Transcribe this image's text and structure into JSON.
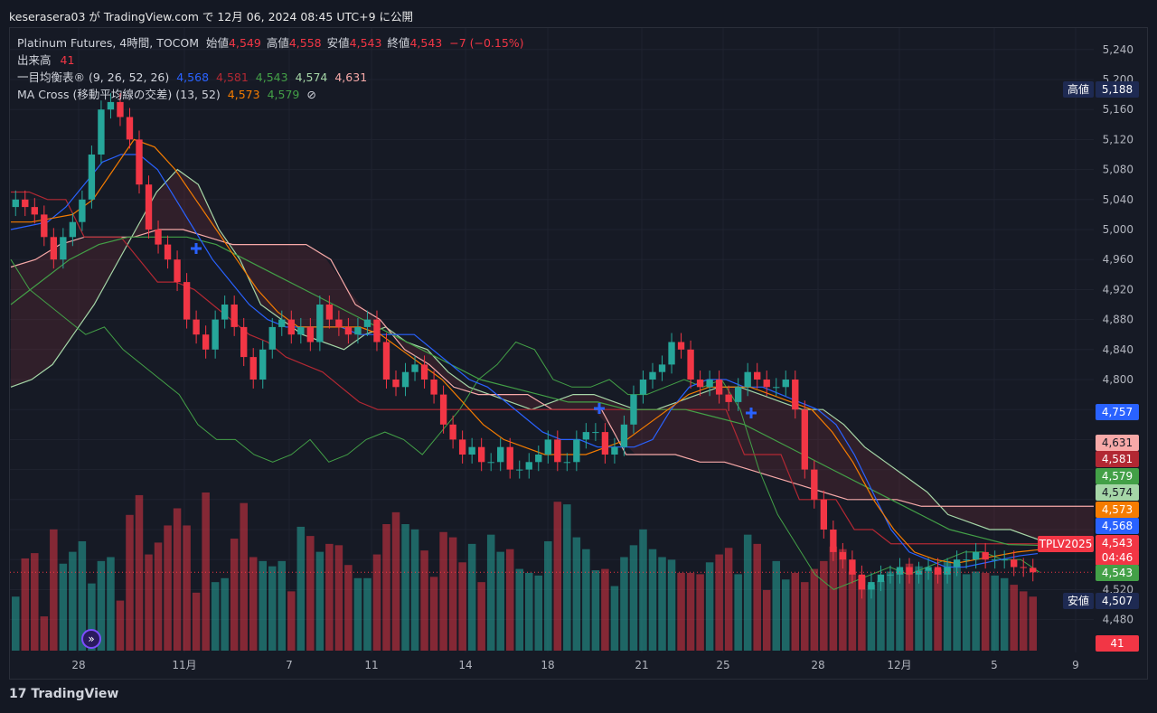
{
  "header": {
    "title": "keserasera03 が TradingView.com で 12月 06, 2024 08:45 UTC+9 に公開"
  },
  "legend": {
    "main_name": "Platinum Futures, 4時間, TOCOM",
    "open_label": "始値",
    "open": "4,549",
    "high_label": "高値",
    "high": "4,558",
    "low_label": "安値",
    "low": "4,543",
    "close_label": "終値",
    "close": "4,543",
    "change": "−7 (−0.15%)",
    "volume_label": "出来高",
    "volume": "41",
    "ichimoku_label": "一目均衡表® (9, 26, 52, 26)",
    "ichimoku_values": [
      "4,568",
      "4,581",
      "4,543",
      "4,574",
      "4,631"
    ],
    "ma_label": "MA Cross (移動平均線の交差) (13, 52)",
    "ma_values": [
      "4,573",
      "4,579"
    ],
    "ma_icon": "eye-off-icon"
  },
  "price_axis": {
    "ticks": [
      "5,240",
      "5,200",
      "5,160",
      "5,120",
      "5,080",
      "5,040",
      "5,000",
      "4,960",
      "4,920",
      "4,880",
      "4,840",
      "4,800",
      "4,520",
      "4,480"
    ],
    "high_label": "高値",
    "high_value": "5,188",
    "low_label": "安値",
    "low_value": "4,507",
    "labels": [
      {
        "text": "4,757",
        "color": "#2962ff"
      },
      {
        "text": "4,631",
        "color": "#f7a9a8"
      },
      {
        "text": "4,581",
        "color": "#b22833"
      },
      {
        "text": "4,579",
        "color": "#43a047"
      },
      {
        "text": "4,574",
        "color": "#a5d6a7"
      },
      {
        "text": "4,573",
        "color": "#f57c00"
      },
      {
        "text": "4,568",
        "color": "#2962ff"
      },
      {
        "text": "4,543",
        "color": "#f23645"
      },
      {
        "text": "04:46",
        "color": "#f23645"
      },
      {
        "text": "4,543",
        "color": "#43a047"
      },
      {
        "text": "41",
        "color": "#f23645"
      }
    ],
    "symbol_tag": "TPLV2025"
  },
  "time_axis": [
    "28",
    "11月",
    "7",
    "11",
    "14",
    "18",
    "21",
    "25",
    "28",
    "12月",
    "5",
    "9"
  ],
  "footer": {
    "brand": "TradingView",
    "logo": "tradingview-logo-icon",
    "replay_icon": "fast-forward-icon"
  },
  "chart_data": {
    "type": "candlestick",
    "ylim": [
      4470,
      5255
    ],
    "colors": {
      "up": "#26a69a",
      "down": "#f23645",
      "tenkan": "#2962ff",
      "kijun": "#b22833",
      "chikou": "#43a047",
      "spanA": "#a5d6a7",
      "spanB": "#f7a9a8",
      "ma_fast": "#f57c00",
      "ma_slow": "#43a047"
    },
    "close": [
      5040,
      5030,
      5020,
      4990,
      4960,
      4990,
      5010,
      5040,
      5100,
      5160,
      5170,
      5150,
      5120,
      5060,
      5000,
      4980,
      4960,
      4930,
      4880,
      4860,
      4840,
      4880,
      4900,
      4870,
      4830,
      4800,
      4840,
      4870,
      4880,
      4860,
      4870,
      4850,
      4900,
      4880,
      4870,
      4860,
      4870,
      4880,
      4850,
      4800,
      4790,
      4810,
      4820,
      4800,
      4780,
      4740,
      4720,
      4700,
      4710,
      4690,
      4690,
      4710,
      4680,
      4680,
      4690,
      4700,
      4720,
      4690,
      4690,
      4720,
      4730,
      4730,
      4700,
      4710,
      4740,
      4780,
      4800,
      4810,
      4820,
      4850,
      4840,
      4800,
      4790,
      4800,
      4780,
      4770,
      4790,
      4810,
      4800,
      4790,
      4790,
      4800,
      4760,
      4680,
      4640,
      4600,
      4570,
      4560,
      4540,
      4520,
      4530,
      4540,
      4540,
      4550,
      4540,
      4545,
      4550,
      4540,
      4550,
      4560,
      4560,
      4570,
      4560,
      4560,
      4560,
      4550,
      4549,
      4543
    ],
    "volume": [
      41,
      70,
      74,
      26,
      92,
      66,
      75,
      83,
      51,
      68,
      71,
      38,
      103,
      118,
      73,
      82,
      95,
      108,
      95,
      44,
      120,
      52,
      55,
      85,
      112,
      71,
      68,
      64,
      68,
      45,
      94,
      87,
      75,
      81,
      80,
      65,
      55,
      55,
      73,
      96,
      105,
      96,
      92,
      76,
      56,
      90,
      86,
      67,
      81,
      52,
      88,
      75,
      77,
      62,
      59,
      57,
      83,
      113,
      111,
      86,
      77,
      61,
      62,
      49,
      71,
      80,
      92,
      77,
      71,
      69,
      59,
      59,
      58,
      67,
      73,
      78,
      58,
      88,
      81,
      46,
      68,
      54,
      59,
      52,
      62,
      68,
      79,
      77,
      60,
      57,
      50,
      53,
      60,
      61,
      66,
      64,
      61,
      62,
      68,
      66,
      58,
      60,
      59,
      57,
      55,
      50,
      45,
      41
    ],
    "tenkan": [
      5000,
      5005,
      5010,
      5030,
      5060,
      5090,
      5100,
      5100,
      5080,
      5040,
      5000,
      4960,
      4930,
      4900,
      4880,
      4870,
      4870,
      4870,
      4870,
      4860,
      4860,
      4860,
      4860,
      4840,
      4820,
      4800,
      4790,
      4770,
      4750,
      4730,
      4720,
      4720,
      4710,
      4710,
      4710,
      4720,
      4760,
      4790,
      4800,
      4800,
      4790,
      4790,
      4780,
      4770,
      4760,
      4740,
      4700,
      4650,
      4600,
      4570,
      4560,
      4550,
      4550,
      4555,
      4560,
      4565,
      4568
    ],
    "kijun": [
      5050,
      5050,
      5040,
      5040,
      4990,
      4990,
      4990,
      4960,
      4930,
      4930,
      4920,
      4900,
      4880,
      4860,
      4850,
      4830,
      4820,
      4810,
      4790,
      4770,
      4760,
      4760,
      4760,
      4760,
      4760,
      4760,
      4760,
      4760,
      4760,
      4760,
      4760,
      4760,
      4760,
      4760,
      4760,
      4760,
      4760,
      4760,
      4760,
      4760,
      4700,
      4700,
      4700,
      4640,
      4640,
      4640,
      4600,
      4600,
      4581,
      4581,
      4581,
      4581,
      4581,
      4581,
      4581,
      4581,
      4581
    ],
    "span_a": [
      4790,
      4800,
      4820,
      4860,
      4900,
      4950,
      5000,
      5050,
      5080,
      5060,
      5000,
      4960,
      4900,
      4880,
      4860,
      4850,
      4840,
      4860,
      4870,
      4850,
      4840,
      4810,
      4790,
      4780,
      4770,
      4760,
      4770,
      4780,
      4780,
      4770,
      4760,
      4760,
      4770,
      4780,
      4790,
      4790,
      4780,
      4770,
      4760,
      4760,
      4740,
      4710,
      4690,
      4670,
      4650,
      4620,
      4610,
      4600,
      4600,
      4590,
      4580,
      4575,
      4574
    ],
    "span_b": [
      4950,
      4960,
      4980,
      4990,
      4990,
      4990,
      5000,
      5000,
      4990,
      4980,
      4980,
      4980,
      4980,
      4960,
      4900,
      4880,
      4840,
      4820,
      4790,
      4780,
      4780,
      4780,
      4760,
      4760,
      4760,
      4700,
      4700,
      4700,
      4690,
      4690,
      4680,
      4670,
      4660,
      4650,
      4640,
      4640,
      4640,
      4631,
      4631,
      4631,
      4631,
      4631,
      4631,
      4631,
      4631
    ],
    "chikou": [
      4960,
      4920,
      4900,
      4880,
      4860,
      4870,
      4840,
      4820,
      4800,
      4780,
      4740,
      4720,
      4720,
      4700,
      4690,
      4700,
      4720,
      4690,
      4700,
      4720,
      4730,
      4720,
      4700,
      4730,
      4760,
      4800,
      4820,
      4850,
      4840,
      4800,
      4790,
      4790,
      4800,
      4780,
      4780,
      4790,
      4800,
      4790,
      4800,
      4760,
      4680,
      4620,
      4580,
      4540,
      4520,
      4530,
      4540,
      4550,
      4540,
      4550,
      4560,
      4570,
      4570,
      4560,
      4560,
      4543
    ],
    "ma_fast": [
      5010,
      5010,
      5015,
      5020,
      5040,
      5080,
      5120,
      5110,
      5080,
      5040,
      5000,
      4960,
      4920,
      4890,
      4870,
      4870,
      4870,
      4870,
      4860,
      4840,
      4820,
      4800,
      4770,
      4740,
      4720,
      4710,
      4700,
      4700,
      4700,
      4710,
      4720,
      4740,
      4760,
      4780,
      4790,
      4790,
      4790,
      4780,
      4770,
      4760,
      4730,
      4690,
      4640,
      4600,
      4570,
      4560,
      4555,
      4560,
      4565,
      4570,
      4573
    ],
    "ma_slow": [
      4900,
      4930,
      4960,
      4980,
      4990,
      4990,
      4990,
      4980,
      4960,
      4940,
      4920,
      4900,
      4880,
      4860,
      4840,
      4820,
      4800,
      4790,
      4780,
      4770,
      4770,
      4760,
      4760,
      4760,
      4750,
      4740,
      4720,
      4700,
      4680,
      4660,
      4640,
      4620,
      4600,
      4590,
      4580,
      4579
    ]
  }
}
